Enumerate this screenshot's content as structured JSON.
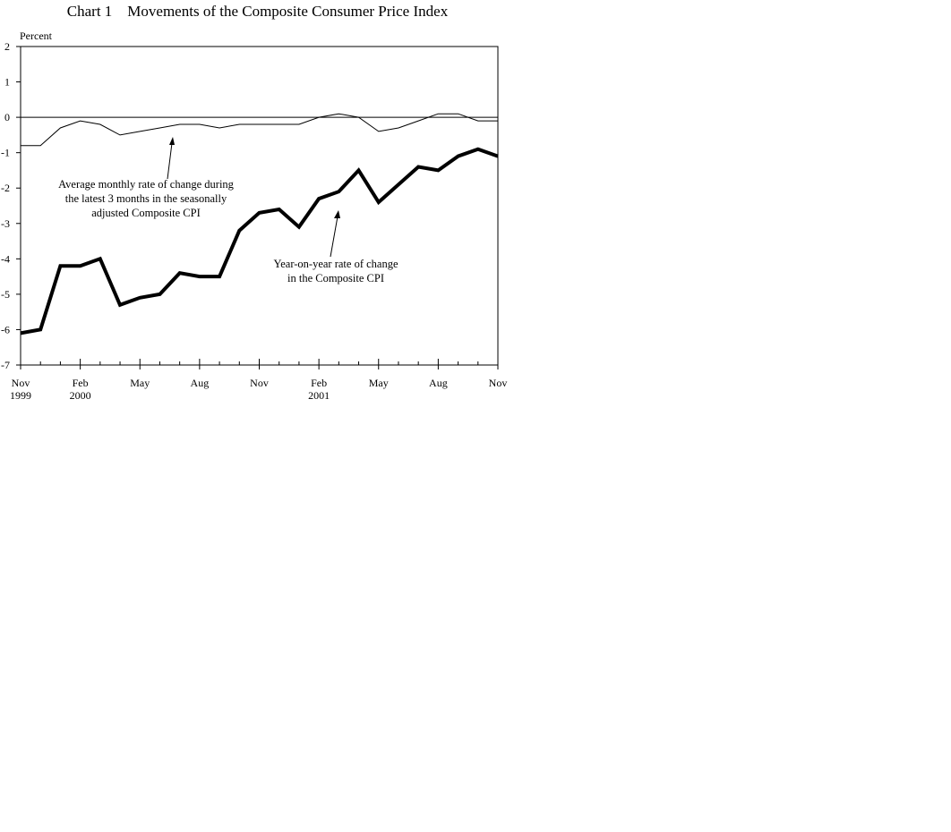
{
  "title": "Chart 1    Movements of the Composite Consumer Price Index",
  "chart_data": {
    "type": "line",
    "title": "Chart 1    Movements of the Composite Consumer Price Index",
    "xlabel": "",
    "ylabel": "Percent",
    "ylim": [
      -7,
      2
    ],
    "yticks": [
      2,
      1,
      0,
      -1,
      -2,
      -3,
      -4,
      -5,
      -6,
      -7
    ],
    "grid": false,
    "legend_position": "none (inline annotations)",
    "x": [
      "Nov 1999",
      "Dec 1999",
      "Jan 2000",
      "Feb 2000",
      "Mar 2000",
      "Apr 2000",
      "May 2000",
      "Jun 2000",
      "Jul 2000",
      "Aug 2000",
      "Sep 2000",
      "Oct 2000",
      "Nov 2000",
      "Dec 2000",
      "Jan 2001",
      "Feb 2001",
      "Mar 2001",
      "Apr 2001",
      "May 2001",
      "Jun 2001",
      "Jul 2001",
      "Aug 2001",
      "Sep 2001",
      "Oct 2001",
      "Nov 2001"
    ],
    "xtick_labels": [
      {
        "line1": "Nov",
        "line2": "1999",
        "index": 0
      },
      {
        "line1": "Feb",
        "line2": "2000",
        "index": 3
      },
      {
        "line1": "May",
        "line2": "",
        "index": 6
      },
      {
        "line1": "Aug",
        "line2": "",
        "index": 9
      },
      {
        "line1": "Nov",
        "line2": "",
        "index": 12
      },
      {
        "line1": "Feb",
        "line2": "2001",
        "index": 15
      },
      {
        "line1": "May",
        "line2": "",
        "index": 18
      },
      {
        "line1": "Aug",
        "line2": "",
        "index": 21
      },
      {
        "line1": "Nov",
        "line2": "",
        "index": 24
      }
    ],
    "series": [
      {
        "name": "Year-on-year rate of change in the Composite CPI",
        "style": "thick",
        "values": [
          -6.1,
          -6.0,
          -4.2,
          -4.2,
          -4.0,
          -5.3,
          -5.1,
          -5.0,
          -4.4,
          -4.5,
          -4.5,
          -3.2,
          -2.7,
          -2.6,
          -3.1,
          -2.3,
          -2.1,
          -1.5,
          -2.4,
          -1.9,
          -1.4,
          -1.5,
          -1.1,
          -0.9,
          -1.1
        ]
      },
      {
        "name": "Average monthly rate of change during the latest 3 months in the seasonally adjusted Composite CPI",
        "style": "thin",
        "values": [
          -0.8,
          -0.8,
          -0.3,
          -0.1,
          -0.2,
          -0.5,
          -0.4,
          -0.3,
          -0.2,
          -0.2,
          -0.3,
          -0.2,
          -0.2,
          -0.2,
          -0.2,
          0.0,
          0.1,
          0.0,
          -0.4,
          -0.3,
          -0.1,
          0.1,
          0.1,
          -0.1,
          -0.1
        ]
      }
    ],
    "annotations": [
      {
        "lines": [
          "Average monthly rate of change during",
          "the latest 3 months in the seasonally",
          "adjusted Composite CPI"
        ],
        "points_to": "thin series"
      },
      {
        "lines": [
          "Year-on-year rate of change",
          "in the Composite CPI"
        ],
        "points_to": "thick series"
      }
    ]
  }
}
